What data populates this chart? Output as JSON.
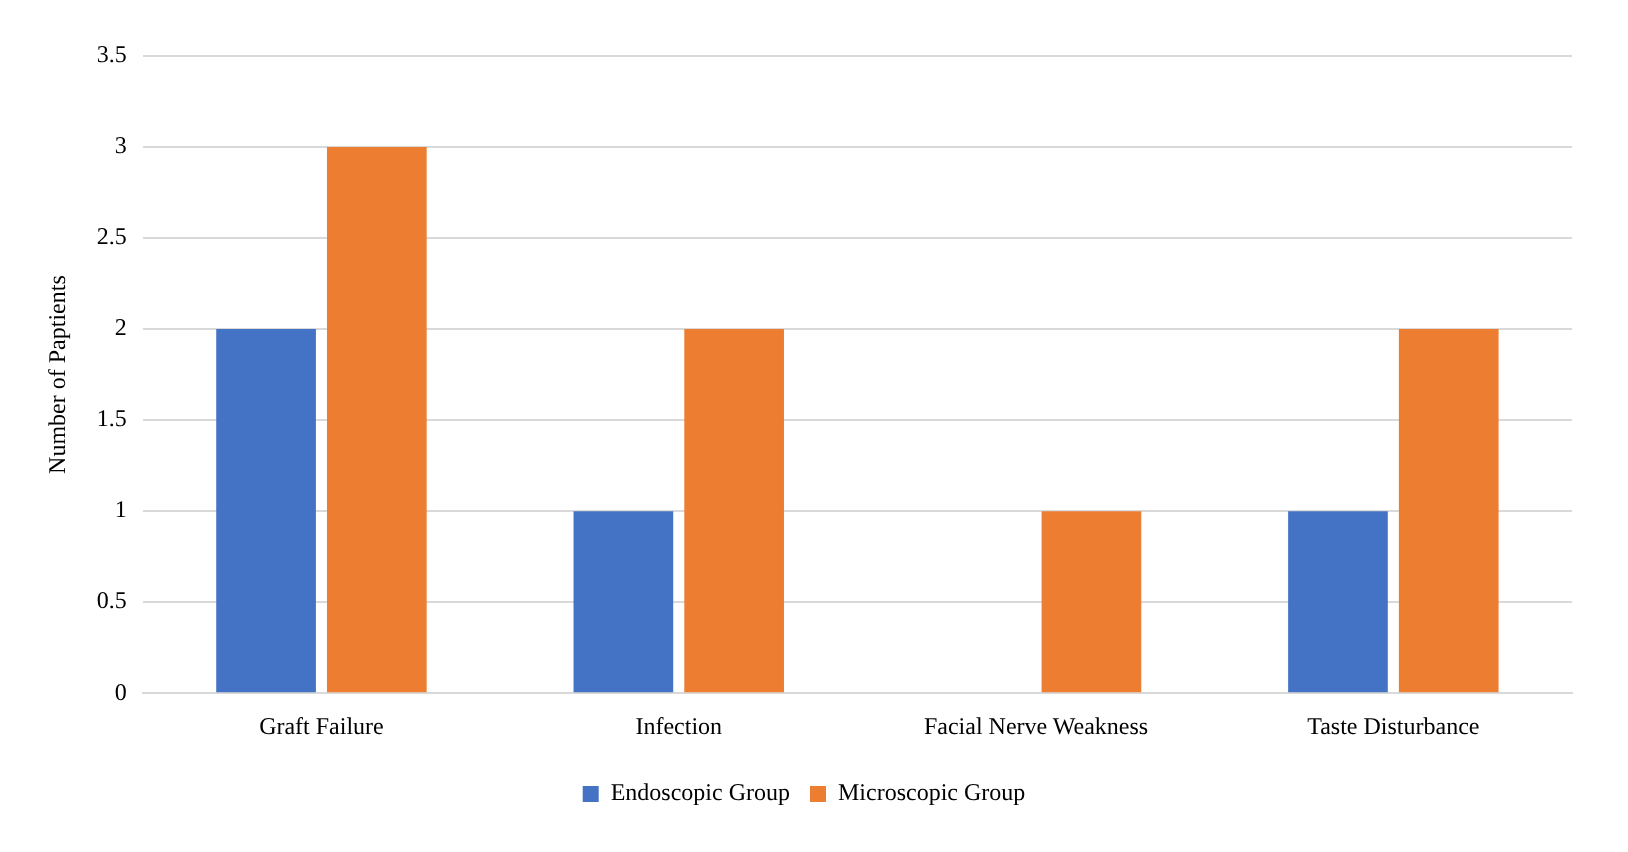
{
  "chart_data": {
    "type": "bar",
    "ylabel": "Number of Paptients",
    "categories": [
      "Graft Failure",
      "Infection",
      "Facial Nerve Weakness",
      "Taste Disturbance"
    ],
    "series": [
      {
        "name": "Endoscopic Group",
        "color": "#4472c4",
        "values": [
          2,
          1,
          0,
          1
        ]
      },
      {
        "name": "Microscopic Group",
        "color": "#ed7d31",
        "values": [
          3,
          2,
          1,
          2
        ]
      }
    ],
    "ylim": [
      0,
      3.5
    ],
    "yticks": [
      0,
      0.5,
      1,
      1.5,
      2,
      2.5,
      3,
      3.5
    ],
    "grid": "y",
    "legend": "bottom"
  }
}
